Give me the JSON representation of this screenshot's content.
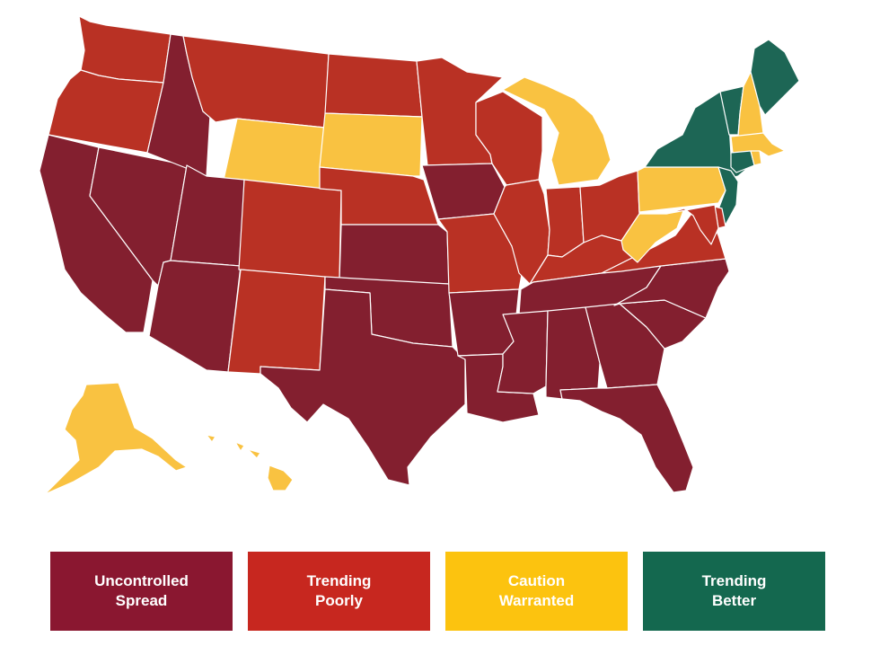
{
  "colors": {
    "uncontrolled": "#831f2f",
    "poorly": "#b93124",
    "caution": "#f9c241",
    "better": "#1d6655"
  },
  "legend": {
    "uncontrolled": {
      "line1": "Uncontrolled",
      "line2": "Spread",
      "color": "#8a1730"
    },
    "poorly": {
      "line1": "Trending",
      "line2": "Poorly",
      "color": "#c7271f"
    },
    "caution": {
      "line1": "Caution",
      "line2": "Warranted",
      "color": "#fcc30f"
    },
    "better": {
      "line1": "Trending",
      "line2": "Better",
      "color": "#14684f"
    }
  },
  "states": {
    "WA": "poorly",
    "OR": "poorly",
    "CA": "uncontrolled",
    "NV": "uncontrolled",
    "ID": "uncontrolled",
    "MT": "poorly",
    "WY": "caution",
    "UT": "uncontrolled",
    "AZ": "uncontrolled",
    "CO": "poorly",
    "NM": "poorly",
    "ND": "poorly",
    "SD": "caution",
    "NE": "poorly",
    "KS": "uncontrolled",
    "OK": "uncontrolled",
    "TX": "uncontrolled",
    "MN": "poorly",
    "IA": "uncontrolled",
    "MO": "poorly",
    "AR": "uncontrolled",
    "LA": "uncontrolled",
    "WI": "poorly",
    "IL": "poorly",
    "MI": "caution",
    "IN": "poorly",
    "OH": "poorly",
    "KY": "poorly",
    "TN": "uncontrolled",
    "MS": "uncontrolled",
    "AL": "uncontrolled",
    "GA": "uncontrolled",
    "FL": "uncontrolled",
    "SC": "uncontrolled",
    "NC": "uncontrolled",
    "VA": "poorly",
    "WV": "caution",
    "PA": "caution",
    "NY": "better",
    "VT": "better",
    "NH": "caution",
    "ME": "better",
    "MA": "caution",
    "CT": "better",
    "RI": "caution",
    "NJ": "better",
    "DE": "poorly",
    "MD": "poorly",
    "AK": "caution",
    "HI": "caution"
  }
}
